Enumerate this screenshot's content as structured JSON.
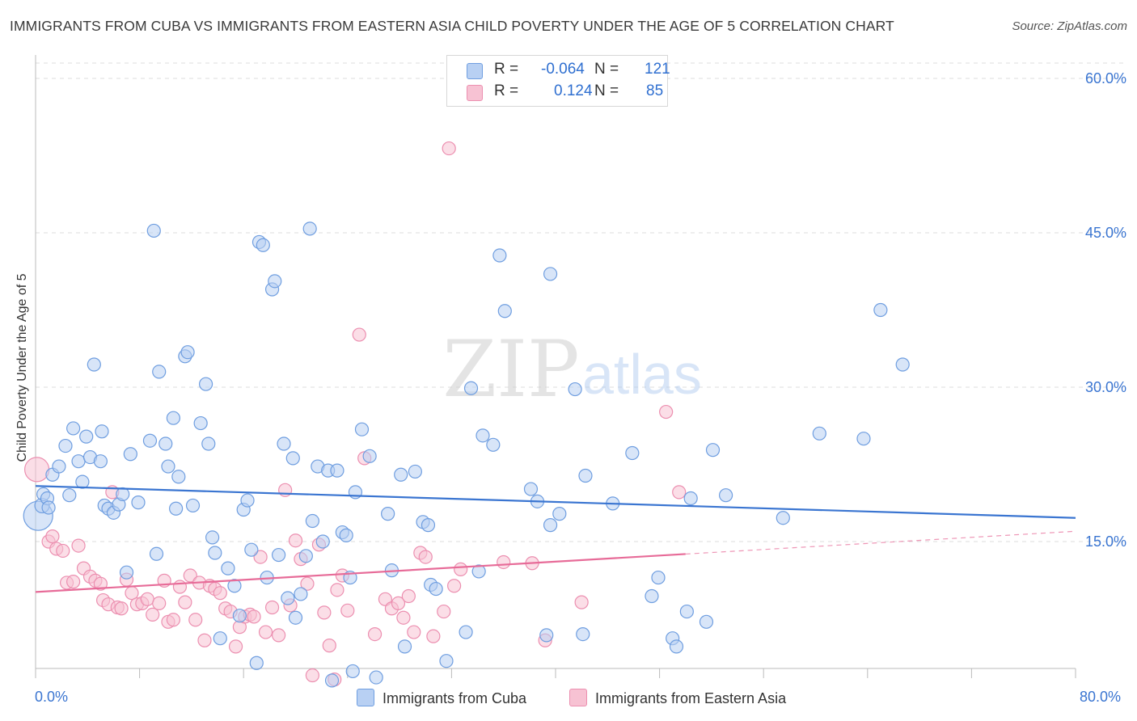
{
  "title": "IMMIGRANTS FROM CUBA VS IMMIGRANTS FROM EASTERN ASIA CHILD POVERTY UNDER THE AGE OF 5 CORRELATION CHART",
  "source": "Source: ZipAtlas.com",
  "watermark": {
    "zip": "ZIP",
    "atlas": "atlas"
  },
  "legend": {
    "rows": [
      {
        "r_label": "R =",
        "r_value": "-0.064",
        "n_label": "N =",
        "n_value": "121"
      },
      {
        "r_label": "R =",
        "r_value": "0.124",
        "n_label": "N =",
        "n_value": "85"
      }
    ]
  },
  "bottom_legend": [
    "Immigrants from Cuba",
    "Immigrants from Eastern Asia"
  ],
  "colors": {
    "cuba_fill": "#b8d0f3",
    "cuba_stroke": "#6f9ee0",
    "cuba_line": "#3a75d1",
    "asia_fill": "#f7c2d3",
    "asia_stroke": "#ec8fb0",
    "asia_line": "#e76b98",
    "tick_label": "#3a75d1",
    "grid": "#dddddd"
  },
  "chart_data": {
    "type": "scatter",
    "title": "IMMIGRANTS FROM CUBA VS IMMIGRANTS FROM EASTERN ASIA CHILD POVERTY UNDER THE AGE OF 5 CORRELATION CHART",
    "xlabel": "",
    "ylabel": "Child Poverty Under the Age of 5",
    "xlim": [
      0,
      80
    ],
    "ylim": [
      0,
      65
    ],
    "x_tick_labels": [
      "0.0%",
      "80.0%"
    ],
    "y_ticks": [
      15,
      30,
      45,
      60
    ],
    "y_tick_labels": [
      "15.0%",
      "30.0%",
      "45.0%",
      "60.0%"
    ],
    "grid": true,
    "series": [
      {
        "name": "Immigrants from Cuba",
        "R": -0.064,
        "N": 121,
        "trend": {
          "x": [
            0,
            80
          ],
          "y": [
            20.4,
            17.3
          ],
          "dashed_from": null
        },
        "points": [
          [
            0.2,
            17.5,
            18
          ],
          [
            0.5,
            18.5,
            9
          ],
          [
            0.6,
            19.6,
            8
          ],
          [
            0.9,
            19.2,
            8
          ],
          [
            1.0,
            18.3,
            8
          ],
          [
            1.3,
            21.5,
            8
          ],
          [
            1.8,
            22.3,
            8
          ],
          [
            2.3,
            24.3,
            8
          ],
          [
            2.6,
            19.5,
            8
          ],
          [
            2.9,
            26,
            8
          ],
          [
            3.3,
            22.8,
            8
          ],
          [
            3.6,
            20.8,
            8
          ],
          [
            3.9,
            25.2,
            8
          ],
          [
            4.2,
            23.2,
            8
          ],
          [
            5.0,
            22.8,
            8
          ],
          [
            4.5,
            32.2,
            8
          ],
          [
            5.1,
            25.7,
            8
          ],
          [
            5.3,
            18.5,
            8
          ],
          [
            5.6,
            18.2,
            8
          ],
          [
            6.0,
            17.8,
            8
          ],
          [
            6.4,
            18.6,
            8
          ],
          [
            6.7,
            19.6,
            8
          ],
          [
            7.0,
            12.0,
            8
          ],
          [
            7.3,
            23.5,
            8
          ],
          [
            7.9,
            18.8,
            8
          ],
          [
            8.8,
            24.8,
            8
          ],
          [
            9.1,
            45.2,
            8
          ],
          [
            9.3,
            13.8,
            8
          ],
          [
            9.5,
            31.5,
            8
          ],
          [
            10.0,
            24.5,
            8
          ],
          [
            10.2,
            22.3,
            8
          ],
          [
            10.6,
            27.0,
            8
          ],
          [
            10.8,
            18.2,
            8
          ],
          [
            11.0,
            21.3,
            8
          ],
          [
            11.5,
            33.0,
            8
          ],
          [
            11.7,
            33.4,
            8
          ],
          [
            12.1,
            18.5,
            8
          ],
          [
            12.7,
            26.5,
            8
          ],
          [
            13.1,
            30.3,
            8
          ],
          [
            13.3,
            24.5,
            8
          ],
          [
            13.6,
            15.4,
            8
          ],
          [
            13.8,
            13.9,
            8
          ],
          [
            14.2,
            5.6,
            8
          ],
          [
            14.8,
            12.4,
            8
          ],
          [
            15.3,
            10.7,
            8
          ],
          [
            15.7,
            7.8,
            8
          ],
          [
            16.0,
            18.1,
            8
          ],
          [
            16.3,
            19.0,
            8
          ],
          [
            16.6,
            14.2,
            8
          ],
          [
            17.0,
            3.2,
            8
          ],
          [
            17.2,
            44.1,
            8
          ],
          [
            17.5,
            43.8,
            8
          ],
          [
            17.8,
            11.5,
            8
          ],
          [
            18.2,
            39.5,
            8
          ],
          [
            18.4,
            40.3,
            8
          ],
          [
            18.7,
            13.7,
            8
          ],
          [
            19.1,
            24.5,
            8
          ],
          [
            19.4,
            9.5,
            8
          ],
          [
            19.8,
            23.1,
            8
          ],
          [
            20.0,
            7.6,
            8
          ],
          [
            20.4,
            9.9,
            8
          ],
          [
            20.8,
            13.6,
            8
          ],
          [
            21.1,
            45.4,
            8
          ],
          [
            21.3,
            17.0,
            8
          ],
          [
            21.7,
            22.3,
            8
          ],
          [
            22.1,
            15.0,
            8
          ],
          [
            22.5,
            21.9,
            8
          ],
          [
            22.8,
            1.5,
            8
          ],
          [
            23.2,
            21.9,
            8
          ],
          [
            23.6,
            15.9,
            8
          ],
          [
            23.9,
            15.6,
            8
          ],
          [
            24.2,
            11.5,
            8
          ],
          [
            24.4,
            2.4,
            8
          ],
          [
            24.6,
            19.8,
            8
          ],
          [
            25.1,
            25.9,
            8
          ],
          [
            25.7,
            23.3,
            8
          ],
          [
            26.2,
            1.8,
            8
          ],
          [
            27.1,
            17.7,
            8
          ],
          [
            27.4,
            12.2,
            8
          ],
          [
            28.1,
            21.5,
            8
          ],
          [
            28.4,
            4.8,
            8
          ],
          [
            29.2,
            21.8,
            8
          ],
          [
            29.8,
            16.9,
            8
          ],
          [
            30.2,
            16.6,
            8
          ],
          [
            30.4,
            10.8,
            8
          ],
          [
            30.8,
            10.4,
            8
          ],
          [
            31.6,
            3.4,
            8
          ],
          [
            33.1,
            6.2,
            8
          ],
          [
            33.5,
            29.9,
            8
          ],
          [
            34.1,
            12.1,
            8
          ],
          [
            34.4,
            25.3,
            8
          ],
          [
            35.2,
            24.4,
            8
          ],
          [
            35.7,
            42.8,
            8
          ],
          [
            36.1,
            37.4,
            8
          ],
          [
            38.1,
            20.1,
            8
          ],
          [
            38.6,
            18.9,
            8
          ],
          [
            39.3,
            5.9,
            8
          ],
          [
            39.6,
            41.0,
            8
          ],
          [
            39.6,
            16.6,
            8
          ],
          [
            40.3,
            17.7,
            8
          ],
          [
            41.5,
            29.8,
            8
          ],
          [
            42.3,
            21.4,
            8
          ],
          [
            42.1,
            6.0,
            8
          ],
          [
            44.4,
            18.7,
            8
          ],
          [
            45.9,
            23.6,
            8
          ],
          [
            47.4,
            9.7,
            8
          ],
          [
            47.9,
            11.5,
            8
          ],
          [
            49.0,
            5.6,
            8
          ],
          [
            49.3,
            4.8,
            8
          ],
          [
            50.1,
            8.2,
            8
          ],
          [
            50.4,
            19.2,
            8
          ],
          [
            51.6,
            7.2,
            8
          ],
          [
            52.1,
            23.9,
            8
          ],
          [
            53.1,
            19.5,
            8
          ],
          [
            57.5,
            17.3,
            8
          ],
          [
            60.3,
            25.5,
            8
          ],
          [
            63.7,
            25.0,
            8
          ],
          [
            65.0,
            37.5,
            8
          ],
          [
            66.7,
            32.2,
            8
          ]
        ]
      },
      {
        "name": "Immigrants from Eastern Asia",
        "R": 0.124,
        "N": 85,
        "trend": {
          "x": [
            0,
            80
          ],
          "y": [
            10.1,
            16.0
          ],
          "dashed_from": 50
        },
        "points": [
          [
            0.1,
            22.0,
            15
          ],
          [
            1.0,
            15.0,
            8
          ],
          [
            1.3,
            15.5,
            8
          ],
          [
            1.6,
            14.3,
            8
          ],
          [
            2.1,
            14.1,
            8
          ],
          [
            2.4,
            11.0,
            8
          ],
          [
            2.9,
            11.1,
            8
          ],
          [
            3.3,
            14.6,
            8
          ],
          [
            3.7,
            12.4,
            8
          ],
          [
            4.2,
            11.6,
            8
          ],
          [
            4.6,
            11.2,
            8
          ],
          [
            5.0,
            10.9,
            8
          ],
          [
            5.2,
            9.3,
            8
          ],
          [
            5.6,
            8.9,
            8
          ],
          [
            5.9,
            19.8,
            8
          ],
          [
            6.3,
            8.6,
            8
          ],
          [
            6.6,
            8.5,
            8
          ],
          [
            7.0,
            11.3,
            8
          ],
          [
            7.4,
            10.0,
            8
          ],
          [
            7.8,
            8.9,
            8
          ],
          [
            8.2,
            9.0,
            8
          ],
          [
            8.6,
            9.4,
            8
          ],
          [
            9.0,
            7.9,
            8
          ],
          [
            9.5,
            9.0,
            8
          ],
          [
            9.9,
            11.2,
            8
          ],
          [
            10.2,
            7.2,
            8
          ],
          [
            10.6,
            7.4,
            8
          ],
          [
            11.1,
            10.6,
            8
          ],
          [
            11.5,
            9.1,
            8
          ],
          [
            11.9,
            11.7,
            8
          ],
          [
            12.3,
            7.4,
            8
          ],
          [
            12.6,
            11.0,
            8
          ],
          [
            13.0,
            5.4,
            8
          ],
          [
            13.4,
            10.7,
            8
          ],
          [
            13.8,
            10.4,
            8
          ],
          [
            14.2,
            10.0,
            8
          ],
          [
            14.6,
            8.5,
            8
          ],
          [
            15.0,
            8.2,
            8
          ],
          [
            15.4,
            4.8,
            8
          ],
          [
            15.7,
            6.7,
            8
          ],
          [
            16.1,
            7.7,
            8
          ],
          [
            16.5,
            7.9,
            8
          ],
          [
            16.8,
            7.7,
            8
          ],
          [
            17.3,
            13.5,
            8
          ],
          [
            17.7,
            6.2,
            8
          ],
          [
            18.2,
            8.6,
            8
          ],
          [
            18.7,
            5.9,
            8
          ],
          [
            19.2,
            20.0,
            8
          ],
          [
            19.6,
            8.8,
            8
          ],
          [
            20.0,
            15.1,
            8
          ],
          [
            20.4,
            13.3,
            8
          ],
          [
            20.9,
            10.9,
            8
          ],
          [
            21.3,
            2.0,
            8
          ],
          [
            21.8,
            14.7,
            8
          ],
          [
            22.2,
            8.1,
            8
          ],
          [
            22.6,
            4.9,
            8
          ],
          [
            23.0,
            1.6,
            8
          ],
          [
            23.2,
            10.3,
            8
          ],
          [
            23.6,
            11.7,
            8
          ],
          [
            24.0,
            8.3,
            8
          ],
          [
            24.9,
            35.1,
            8
          ],
          [
            25.3,
            23.1,
            8
          ],
          [
            26.1,
            6.0,
            8
          ],
          [
            26.9,
            9.4,
            8
          ],
          [
            27.4,
            8.5,
            8
          ],
          [
            27.9,
            9.0,
            8
          ],
          [
            28.3,
            7.6,
            8
          ],
          [
            28.7,
            9.7,
            8
          ],
          [
            29.1,
            6.2,
            8
          ],
          [
            29.6,
            13.9,
            8
          ],
          [
            30.0,
            13.5,
            8
          ],
          [
            30.6,
            5.8,
            8
          ],
          [
            31.4,
            8.2,
            8
          ],
          [
            31.8,
            53.2,
            8
          ],
          [
            32.2,
            10.7,
            8
          ],
          [
            32.7,
            12.3,
            8
          ],
          [
            36.0,
            13.0,
            8
          ],
          [
            38.2,
            12.9,
            8
          ],
          [
            39.2,
            5.4,
            8
          ],
          [
            42.0,
            9.1,
            8
          ],
          [
            48.5,
            27.6,
            8
          ],
          [
            49.5,
            19.8,
            8
          ]
        ]
      }
    ]
  }
}
